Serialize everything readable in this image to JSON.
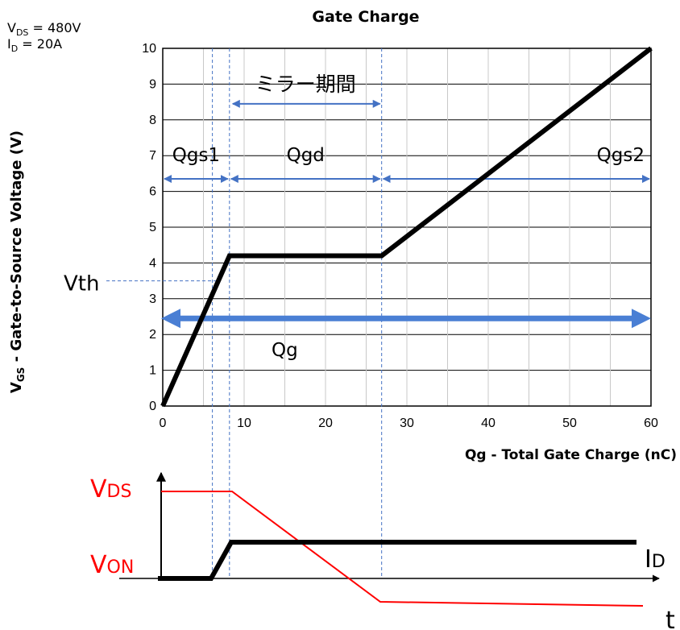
{
  "chart_data": {
    "type": "line",
    "title": "Gate Charge",
    "xlabel": "Qg - Total Gate Charge (nC)",
    "ylabel_main": "V",
    "ylabel_sub": "GS",
    "ylabel_rest": " - Gate-to-Source Voltage (V)",
    "conditions": [
      {
        "main": "V",
        "sub": "DS",
        "rest": " = 480V"
      },
      {
        "main": "I",
        "sub": "D",
        "rest": " = 20A"
      }
    ],
    "xlim": [
      0,
      60
    ],
    "ylim": [
      0,
      10
    ],
    "xticks": [
      0,
      10,
      20,
      30,
      40,
      50,
      60
    ],
    "yticks": [
      0,
      1,
      2,
      3,
      4,
      5,
      6,
      7,
      8,
      9,
      10
    ],
    "grid": true,
    "series": [
      {
        "x": [
          0,
          8.2,
          26.9,
          60
        ],
        "y": [
          0,
          4.2,
          4.2,
          10
        ]
      }
    ],
    "markers_x": [
      6.1,
      8.2,
      26.9
    ],
    "vth": {
      "label": "Vth",
      "y": 3.5
    },
    "regions": [
      {
        "label": "Qgs1",
        "from": 0,
        "to": 8.2,
        "y": 6.35
      },
      {
        "label": "Qgd",
        "from": 8.2,
        "to": 26.9,
        "y": 6.35
      },
      {
        "label": "Qgs2",
        "from": 26.9,
        "to": 60,
        "y": 6.35
      }
    ],
    "miller": {
      "label": "ミラー期間",
      "from": 8.2,
      "to": 26.9,
      "y": 8.45
    },
    "qg": {
      "label": "Qg",
      "from": 0,
      "to": 60,
      "y": 2.45
    }
  },
  "waveform": {
    "vds_label_main": "V",
    "vds_label_sub": "DS",
    "von_label_main": "V",
    "von_label_sub": "ON",
    "id_label_main": "I",
    "id_label_sub": "D",
    "t_label": "t",
    "vds_color": "#ff0000",
    "id_color": "#000000",
    "region_arrow_color": "#4472c4",
    "qg_arrow_color": "#4a7fd4",
    "marker_color": "#4472c4"
  }
}
